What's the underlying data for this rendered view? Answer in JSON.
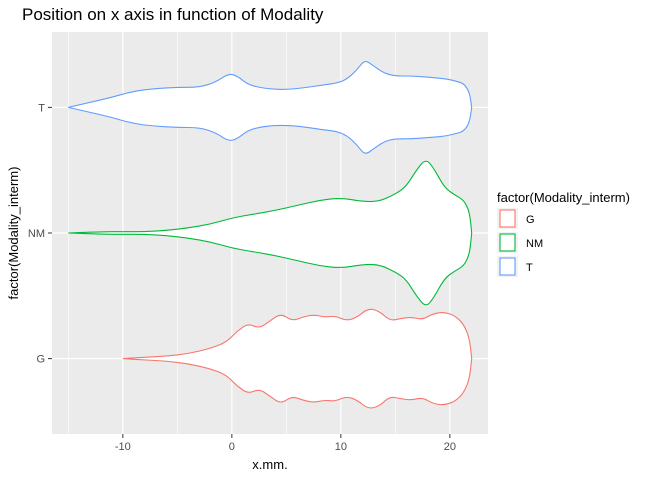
{
  "chart_data": {
    "type": "violin",
    "title": "Position on x axis in function of Modality",
    "xlabel": "x.mm.",
    "ylabel": "factor(Modality_interm)",
    "xlim": [
      -16.5,
      23.5
    ],
    "x_ticks": [
      -10,
      0,
      10,
      20
    ],
    "categories": [
      "G",
      "NM",
      "T"
    ],
    "grid": true,
    "legend": {
      "title": "factor(Modality_interm)",
      "position": "right"
    },
    "series": [
      {
        "name": "G",
        "color": "#F8766D",
        "profile": [
          [
            -10.0,
            0.0
          ],
          [
            -8.0,
            0.01
          ],
          [
            -6.0,
            0.02
          ],
          [
            -4.0,
            0.04
          ],
          [
            -2.0,
            0.08
          ],
          [
            -0.5,
            0.13
          ],
          [
            0.5,
            0.22
          ],
          [
            1.5,
            0.28
          ],
          [
            2.5,
            0.24
          ],
          [
            3.5,
            0.3
          ],
          [
            4.5,
            0.36
          ],
          [
            5.5,
            0.3
          ],
          [
            6.5,
            0.33
          ],
          [
            7.5,
            0.35
          ],
          [
            8.5,
            0.33
          ],
          [
            9.5,
            0.34
          ],
          [
            10.5,
            0.3
          ],
          [
            11.5,
            0.33
          ],
          [
            12.5,
            0.4
          ],
          [
            13.5,
            0.38
          ],
          [
            14.5,
            0.3
          ],
          [
            15.5,
            0.32
          ],
          [
            16.5,
            0.33
          ],
          [
            17.5,
            0.31
          ],
          [
            18.5,
            0.36
          ],
          [
            19.5,
            0.37
          ],
          [
            20.5,
            0.34
          ],
          [
            21.3,
            0.27
          ],
          [
            21.8,
            0.16
          ],
          [
            22.0,
            0.0
          ]
        ]
      },
      {
        "name": "NM",
        "color": "#00BA38",
        "profile": [
          [
            -15.0,
            0.0
          ],
          [
            -12.0,
            0.01
          ],
          [
            -10.0,
            0.01
          ],
          [
            -8.0,
            0.01
          ],
          [
            -6.0,
            0.02
          ],
          [
            -4.0,
            0.04
          ],
          [
            -2.0,
            0.07
          ],
          [
            0.0,
            0.12
          ],
          [
            2.0,
            0.15
          ],
          [
            4.0,
            0.18
          ],
          [
            6.0,
            0.22
          ],
          [
            8.0,
            0.26
          ],
          [
            10.0,
            0.28
          ],
          [
            12.0,
            0.25
          ],
          [
            13.5,
            0.25
          ],
          [
            15.0,
            0.31
          ],
          [
            16.0,
            0.37
          ],
          [
            17.0,
            0.51
          ],
          [
            17.8,
            0.59
          ],
          [
            18.5,
            0.52
          ],
          [
            19.5,
            0.36
          ],
          [
            20.5,
            0.3
          ],
          [
            21.3,
            0.26
          ],
          [
            21.8,
            0.17
          ],
          [
            22.0,
            0.0
          ]
        ]
      },
      {
        "name": "T",
        "color": "#619CFF",
        "profile": [
          [
            -15.0,
            0.0
          ],
          [
            -13.0,
            0.04
          ],
          [
            -11.0,
            0.08
          ],
          [
            -9.0,
            0.13
          ],
          [
            -7.0,
            0.15
          ],
          [
            -5.0,
            0.16
          ],
          [
            -3.0,
            0.16
          ],
          [
            -1.5,
            0.2
          ],
          [
            -0.3,
            0.27
          ],
          [
            0.5,
            0.25
          ],
          [
            1.5,
            0.18
          ],
          [
            3.0,
            0.15
          ],
          [
            5.0,
            0.14
          ],
          [
            7.0,
            0.16
          ],
          [
            8.5,
            0.18
          ],
          [
            9.5,
            0.19
          ],
          [
            10.5,
            0.22
          ],
          [
            11.5,
            0.3
          ],
          [
            12.2,
            0.38
          ],
          [
            13.0,
            0.33
          ],
          [
            14.0,
            0.27
          ],
          [
            15.0,
            0.25
          ],
          [
            16.5,
            0.25
          ],
          [
            18.0,
            0.24
          ],
          [
            19.5,
            0.23
          ],
          [
            20.5,
            0.21
          ],
          [
            21.3,
            0.19
          ],
          [
            21.8,
            0.12
          ],
          [
            22.0,
            0.0
          ]
        ]
      }
    ]
  }
}
